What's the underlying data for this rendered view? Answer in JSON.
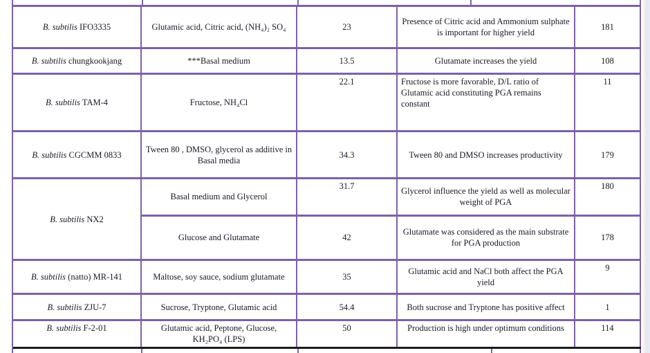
{
  "table": {
    "colors": {
      "grid": "#7d61a6",
      "section_divider": "#1b1b1b",
      "text": "#191927"
    },
    "rows": [
      {
        "strain_italic": "B. subtilis",
        "strain_rest": "IFO3335",
        "medium": "Glutamic acid, Citric acid, (NH₄)₂ SO₄",
        "yield": "23",
        "significance": "Presence of Citric acid and Ammonium sulphate is important for higher yield",
        "reference": "181"
      },
      {
        "strain_italic": "B. subtilis",
        "strain_rest": "chungkookjang",
        "medium": "***Basal medium",
        "yield": "13.5",
        "significance": "Glutamate increases the yield",
        "reference": "108"
      },
      {
        "strain_italic": "B. subtilis",
        "strain_rest": "TAM-4",
        "medium": "Fructose, NH₄Cl",
        "yield": "22.1",
        "significance": "Fructose is more favorable, D/L ratio of Glutamic acid constituting PGA remains constant",
        "reference": "11"
      },
      {
        "strain_italic": "B. subtilis",
        "strain_rest": "CGCMM 0833",
        "medium": "Tween 80 , DMSO, glycerol as additive in Basal media",
        "yield": "34.3",
        "significance": "Tween 80 and DMSO increases productivity",
        "reference": "179"
      },
      {
        "strain_italic": "B. subtilis",
        "strain_rest": "NX2",
        "strain_rowspan": 2,
        "medium": "Basal medium and Glycerol",
        "yield": "31.7",
        "significance": "Glycerol influence the yield as well as molecular weight of PGA",
        "reference": "180"
      },
      {
        "strain_merged": true,
        "medium": "Glucose and Glutamate",
        "yield": "42",
        "significance": "Glutamate was considered as the main substrate for PGA production",
        "reference": "178"
      },
      {
        "strain_italic": "B. subtilis",
        "strain_rest": "(natto) MR-141",
        "medium": "Maltose, soy sauce, sodium glutamate",
        "yield": "35",
        "significance": "Glutamic acid and NaCl both affect the PGA yield",
        "reference": "9"
      },
      {
        "strain_italic": "B. subtilis",
        "strain_rest": "ZJU-7",
        "medium": "Sucrose, Tryptone, Glutamic acid",
        "yield": "54.4",
        "significance": "Both sucrose and Tryptone has positive affect",
        "reference": "1"
      },
      {
        "strain_italic": "B. subtilis",
        "strain_rest": "F-2-01",
        "medium": "Glutamic acid, Peptone, Glucose, KH₂PO₄ (LPS)",
        "yield": "50",
        "significance": "Production is high under optimum conditions",
        "reference": "114"
      }
    ]
  }
}
